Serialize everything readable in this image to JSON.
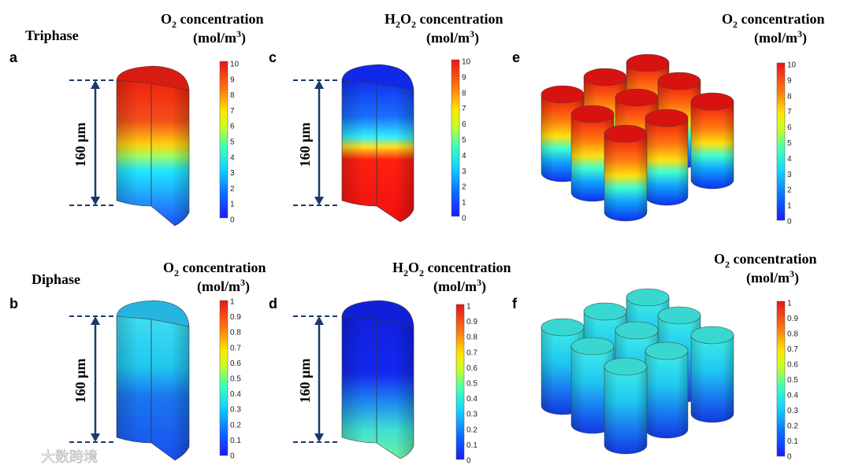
{
  "row_labels": {
    "top": "Triphase",
    "bottom": "Diphase"
  },
  "scale_bar_text": "160 μm",
  "watermark": {
    "text": "大数跨境"
  },
  "panels": [
    {
      "letter": "a",
      "title_species": "O",
      "title_sub": "2",
      "title_suffix": " concentration",
      "units_base": "(mol/m",
      "units_sup": "3",
      "units_close": ")",
      "ticks": [
        "0",
        "1",
        "2",
        "3",
        "4",
        "5",
        "6",
        "7",
        "8",
        "9",
        "10"
      ]
    },
    {
      "letter": "b",
      "title_species": "O",
      "title_sub": "2",
      "title_suffix": " concentration",
      "units_base": "(mol/m",
      "units_sup": "3",
      "units_close": ")",
      "ticks": [
        "0",
        "0.1",
        "0.2",
        "0.3",
        "0.4",
        "0.5",
        "0.6",
        "0.7",
        "0.8",
        "0.9",
        "1"
      ]
    },
    {
      "letter": "c",
      "title_species": "H",
      "title_sub": "2",
      "title_species2": "O",
      "title_sub2": "2",
      "title_suffix": " concentration",
      "units_base": "(mol/m",
      "units_sup": "3",
      "units_close": ")",
      "ticks": [
        "0",
        "1",
        "2",
        "3",
        "4",
        "5",
        "6",
        "7",
        "8",
        "9",
        "10"
      ]
    },
    {
      "letter": "d",
      "title_species": "H",
      "title_sub": "2",
      "title_species2": "O",
      "title_sub2": "2",
      "title_suffix": " concentration",
      "units_base": "(mol/m",
      "units_sup": "3",
      "units_close": ")",
      "ticks": [
        "0",
        "0.1",
        "0.2",
        "0.3",
        "0.4",
        "0.5",
        "0.6",
        "0.7",
        "0.8",
        "0.9",
        "1"
      ]
    },
    {
      "letter": "e",
      "title_species": "O",
      "title_sub": "2",
      "title_suffix": " concentration",
      "units_base": "(mol/m",
      "units_sup": "3",
      "units_close": ")",
      "ticks": [
        "0",
        "1",
        "2",
        "3",
        "4",
        "5",
        "6",
        "7",
        "8",
        "9",
        "10"
      ]
    },
    {
      "letter": "f",
      "title_species": "O",
      "title_sub": "2",
      "title_suffix": " concentration",
      "units_base": "(mol/m",
      "units_sup": "3",
      "units_close": ")",
      "ticks": [
        "0",
        "0.1",
        "0.2",
        "0.3",
        "0.4",
        "0.5",
        "0.6",
        "0.7",
        "0.8",
        "0.9",
        "1"
      ]
    }
  ],
  "colormap": [
    "#00008f",
    "#0000ff",
    "#0080ff",
    "#00ffff",
    "#80ff80",
    "#ffff00",
    "#ff8000",
    "#ff0000",
    "#800000"
  ]
}
